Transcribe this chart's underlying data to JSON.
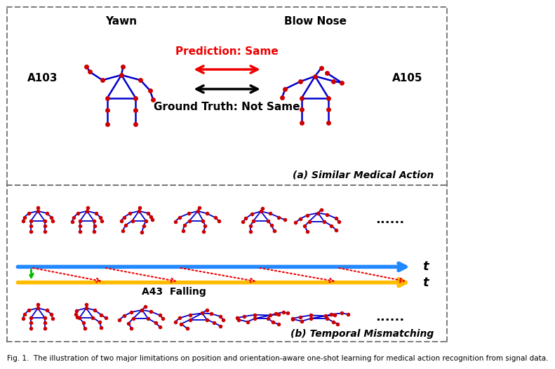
{
  "panel_a_label": "(a) Similar Medical Action",
  "panel_b_label": "(b) Temporal Mismatching",
  "action_a103": "A103",
  "action_a105": "A105",
  "label_yawn": "Yawn",
  "label_blownose": "Blow Nose",
  "prediction_text": "Prediction: Same",
  "groundtruth_text": "Ground Truth: Not Same",
  "action_a43": "A43  Falling",
  "dots": "......",
  "t_label": "t",
  "skeleton_line_color": "#0000cc",
  "skeleton_joint_color": "#cc0000",
  "arrow_red": "#ee0000",
  "arrow_black": "#000000",
  "timeline_blue": "#2288ff",
  "timeline_yellow": "#ffbb00",
  "green_arrow": "#00bb00",
  "bg_color": "#ffffff",
  "border_color": "#666666",
  "caption": "Fig. 1.  The illustration of two major limitations on position and orientation-aware one-shot learning for medical action recognition from signal data."
}
